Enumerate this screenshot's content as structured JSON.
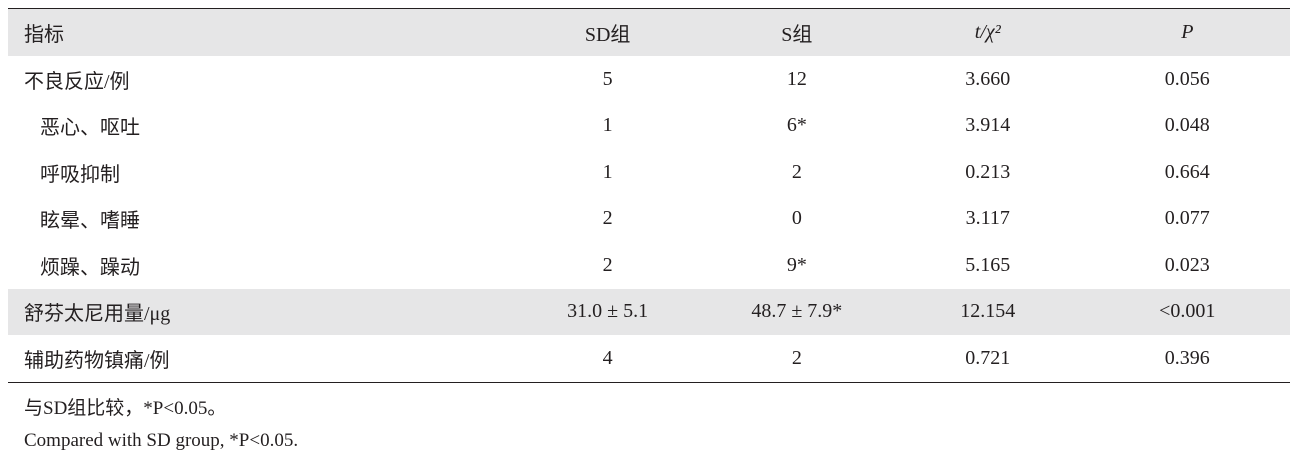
{
  "table": {
    "header": [
      "指标",
      "SD组",
      "S组",
      "t/χ²",
      "P"
    ],
    "rows": [
      [
        "不良反应/例",
        "5",
        "12",
        "3.660",
        "0.056"
      ],
      [
        "恶心、呕吐",
        "1",
        "6*",
        "3.914",
        "0.048"
      ],
      [
        "呼吸抑制",
        "1",
        "2",
        "0.213",
        "0.664"
      ],
      [
        "眩晕、嗜睡",
        "2",
        "0",
        "3.117",
        "0.077"
      ],
      [
        "烦躁、躁动",
        "2",
        "9*",
        "5.165",
        "0.023"
      ],
      [
        "舒芬太尼用量/μg",
        "31.0 ± 5.1",
        "48.7 ± 7.9*",
        "12.154",
        "<0.001"
      ],
      [
        "辅助药物镇痛/例",
        "4",
        "2",
        "0.721",
        "0.396"
      ]
    ]
  },
  "notes": [
    "与SD组比较，*P<0.05。",
    "Compared with SD group, *P<0.05."
  ]
}
